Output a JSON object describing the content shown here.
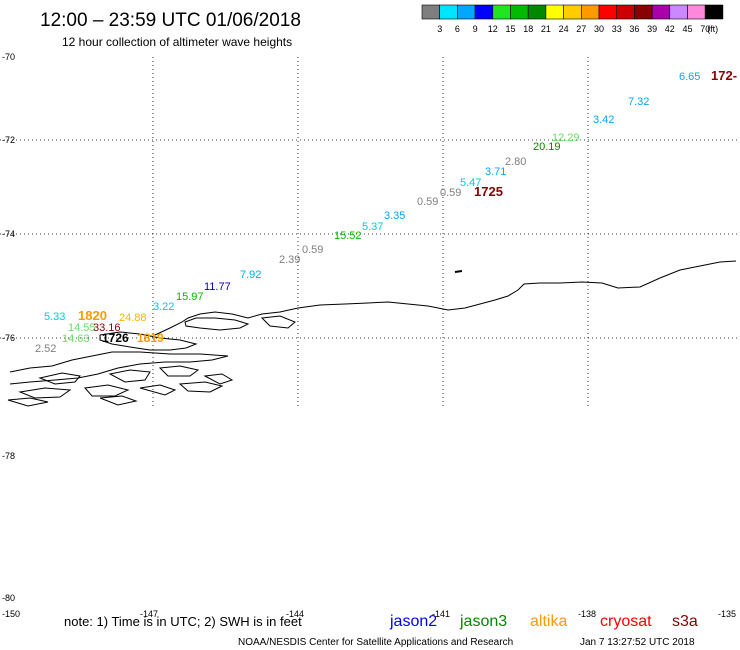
{
  "header": {
    "title": "12:00 – 23:59 UTC 01/06/2018",
    "subtitle": "12 hour collection of altimeter wave heights"
  },
  "legend": {
    "unit": "(ft)",
    "bins": [
      {
        "label": "3",
        "color": "#7f7f7f"
      },
      {
        "label": "6",
        "color": "#00e5ff"
      },
      {
        "label": "9",
        "color": "#00a7ff"
      },
      {
        "label": "12",
        "color": "#0000ff"
      },
      {
        "label": "15",
        "color": "#22e522"
      },
      {
        "label": "18",
        "color": "#00bb00"
      },
      {
        "label": "21",
        "color": "#008800"
      },
      {
        "label": "24",
        "color": "#ffff00"
      },
      {
        "label": "27",
        "color": "#ffcc00"
      },
      {
        "label": "30",
        "color": "#ff9900"
      },
      {
        "label": "33",
        "color": "#ff0000"
      },
      {
        "label": "36",
        "color": "#cc0000"
      },
      {
        "label": "39",
        "color": "#880000"
      },
      {
        "label": "42",
        "color": "#aa00aa"
      },
      {
        "label": "45",
        "color": "#cc88ff"
      },
      {
        "label": "70",
        "color": "#ff88dd"
      },
      {
        "label": "",
        "color": "#000000"
      }
    ]
  },
  "axes": {
    "lat_labels": [
      "-70",
      "-72",
      "-74",
      "-76",
      "-78",
      "-80"
    ],
    "lon_labels": [
      "-150",
      "-147",
      "-144",
      "-141",
      "-138",
      "-135"
    ]
  },
  "observations": [
    {
      "text": "6.65",
      "color": "#00a7ff"
    },
    {
      "text": "172-",
      "color": "#880000"
    },
    {
      "text": "7.32",
      "color": "#00a7ff"
    },
    {
      "text": "3.42",
      "color": "#00a7ff"
    },
    {
      "text": "12.29",
      "color": "#66dd66"
    },
    {
      "text": "20.19",
      "color": "#008800"
    },
    {
      "text": "2.80",
      "color": "#7f7f7f"
    },
    {
      "text": "3.71",
      "color": "#00a7ff"
    },
    {
      "text": "5.47",
      "color": "#00c8e6"
    },
    {
      "text": "0.59",
      "color": "#7f7f7f"
    },
    {
      "text": "1725",
      "color": "#880000"
    },
    {
      "text": "0.59",
      "color": "#7f7f7f"
    },
    {
      "text": "3.35",
      "color": "#00a7ff"
    },
    {
      "text": "5.37",
      "color": "#00c8e6"
    },
    {
      "text": "15.52",
      "color": "#00bb00"
    },
    {
      "text": "0.59",
      "color": "#7f7f7f"
    },
    {
      "text": "2.39",
      "color": "#7f7f7f"
    },
    {
      "text": "7.92",
      "color": "#00a7ff"
    },
    {
      "text": "11.77",
      "color": "#0000cc"
    },
    {
      "text": "15.97",
      "color": "#00bb00"
    },
    {
      "text": "3.22",
      "color": "#00c8e6"
    },
    {
      "text": "5.33",
      "color": "#00c8e6"
    },
    {
      "text": "1820",
      "color": "#ff9900"
    },
    {
      "text": "24.88",
      "color": "#ffb300"
    },
    {
      "text": "14.55",
      "color": "#66dd66"
    },
    {
      "text": "33.16",
      "color": "#880000"
    },
    {
      "text": "14.63",
      "color": "#66dd66"
    },
    {
      "text": "1726",
      "color": "#000000"
    },
    {
      "text": "1819",
      "color": "#ff9900"
    },
    {
      "text": "2.52",
      "color": "#7f7f7f"
    }
  ],
  "footer": {
    "note": "note:  1) Time is in UTC;  2) SWH is in feet",
    "satellites": [
      {
        "name": "jason2",
        "color": "#0000ff"
      },
      {
        "name": "jason3",
        "color": "#008800"
      },
      {
        "name": "altika",
        "color": "#ff9900"
      },
      {
        "name": "cryosat",
        "color": "#ff0000"
      },
      {
        "name": "s3a",
        "color": "#880000"
      }
    ],
    "credit": "NOAA/NESDIS Center for Satellite Applications and Research",
    "timestamp": "Jan  7 13:27:52 UTC 2018"
  }
}
